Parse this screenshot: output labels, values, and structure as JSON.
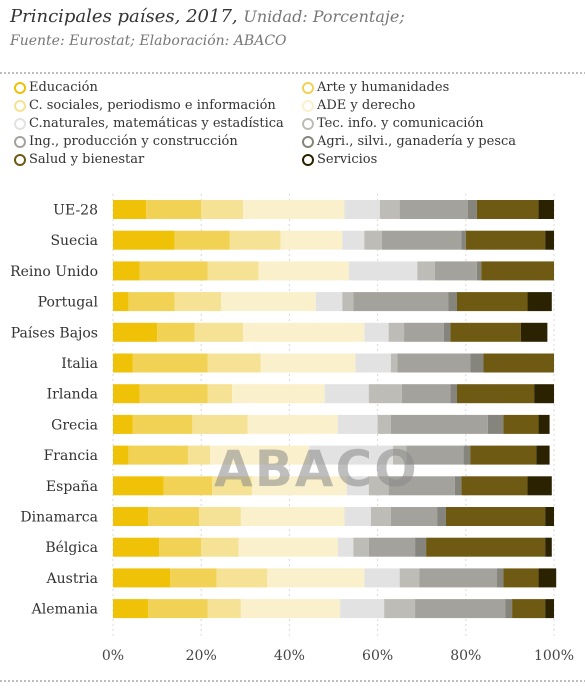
{
  "header": {
    "title": "Principales países, 2017,",
    "unit": "Unidad: Porcentaje;",
    "source": "Fuente:  Eurostat;  Elaboración: ABACO"
  },
  "watermark": "ABACO",
  "colors": {
    "Educación": "#efc107",
    "Arte y humanidades": "#f2d255",
    "C. sociales, periodismo e información": "#f5e294",
    "ADE y derecho": "#faf1cc",
    "C.naturales, matemáticas y estadística": "#e2e2e2",
    "Tec. info. y comunicación": "#bdbcb6",
    "Ing., producción y construcción": "#a3a29c",
    "Agri., silvi., ganadería y pesca": "#86857d",
    "Salud y bienestar": "#6e5a12",
    "Servicios": "#2a2200"
  },
  "chart_data": {
    "type": "bar",
    "orientation": "horizontal",
    "stacked": true,
    "categories": [
      "UE-28",
      "Suecia",
      "Reino Unido",
      "Portugal",
      "Países Bajos",
      "Italia",
      "Irlanda",
      "Grecia",
      "Francia",
      "España",
      "Dinamarca",
      "Bélgica",
      "Austria",
      "Alemania"
    ],
    "xlim": [
      0,
      100
    ],
    "xticks": [
      "0%",
      "20%",
      "40%",
      "60%",
      "80%",
      "100%"
    ],
    "legend_position": "top",
    "series": [
      {
        "name": "Educación",
        "values": [
          7.5,
          14,
          6,
          3.5,
          10,
          4.5,
          6,
          4.5,
          3.5,
          11.5,
          8,
          10.5,
          13,
          8
        ]
      },
      {
        "name": "Arte y humanidades",
        "values": [
          12.5,
          12.5,
          15.5,
          10.5,
          8.5,
          17,
          15.5,
          13.5,
          13.5,
          11,
          11.5,
          9.5,
          10.5,
          13.5
        ]
      },
      {
        "name": "C. sociales, periodismo e información",
        "values": [
          9.5,
          11.5,
          11.5,
          10.5,
          11,
          12,
          5.5,
          12.5,
          5,
          9,
          9.5,
          8.5,
          11.5,
          7.5
        ]
      },
      {
        "name": "ADE y derecho",
        "values": [
          23,
          14,
          20.5,
          21.5,
          27.5,
          21.5,
          21,
          20.5,
          22.5,
          21.5,
          23.5,
          22.5,
          22,
          22.5
        ]
      },
      {
        "name": "C.naturales, matemáticas y estadística",
        "values": [
          8,
          5,
          15.5,
          6,
          5.5,
          8,
          10,
          9,
          19,
          5,
          6,
          3.5,
          8,
          10
        ]
      },
      {
        "name": "Tec. info. y comunicación",
        "values": [
          4.5,
          4,
          4,
          2.5,
          3.5,
          1.5,
          7.5,
          3,
          3,
          4.5,
          4.5,
          3.5,
          4.5,
          7
        ]
      },
      {
        "name": "Ing., producción y construcción",
        "values": [
          15.5,
          18,
          9.5,
          21.5,
          9,
          16.5,
          11,
          22,
          13,
          15,
          10.5,
          10.5,
          17.5,
          20.5
        ]
      },
      {
        "name": "Agri., silvi., ganadería y pesca",
        "values": [
          2,
          1,
          1,
          2,
          1.5,
          3,
          1.5,
          3.5,
          1.5,
          1.5,
          2,
          2.5,
          1.5,
          1.5
        ]
      },
      {
        "name": "Salud y bienestar",
        "values": [
          14,
          18,
          16.5,
          16,
          16,
          16,
          17.5,
          8,
          15,
          15,
          22.5,
          27,
          8,
          7.5
        ]
      },
      {
        "name": "Servicios",
        "values": [
          3.5,
          2,
          0,
          5.5,
          6,
          0,
          4.5,
          2.5,
          3,
          5.5,
          2,
          1.5,
          4,
          2
        ]
      }
    ]
  }
}
